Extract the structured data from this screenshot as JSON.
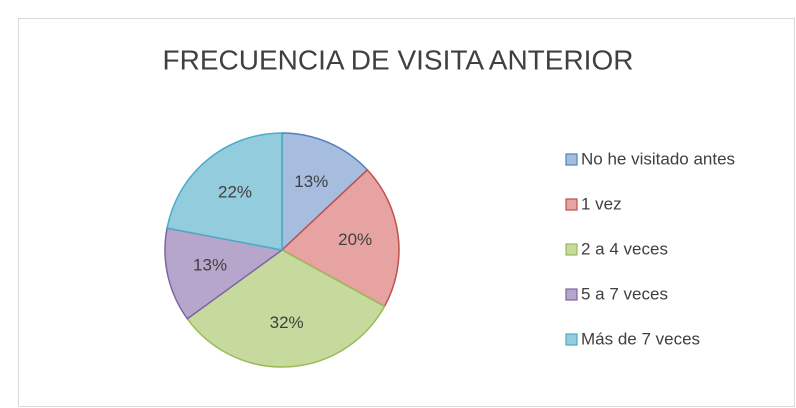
{
  "chart_data": {
    "type": "pie",
    "title": "FRECUENCIA DE VISITA ANTERIOR",
    "categories": [
      "No he visitado antes",
      "1 vez",
      "2 a 4 veces",
      "5 a 7 veces",
      "Más de 7 veces"
    ],
    "values": [
      13,
      20,
      32,
      13,
      22
    ],
    "value_labels": [
      "13%",
      "20%",
      "32%",
      "13%",
      "22%"
    ],
    "colors": [
      "#a7bde0",
      "#e6a3a2",
      "#c5da9c",
      "#b7a6cc",
      "#93cddd"
    ],
    "edge_colors": [
      "#4f81bd",
      "#c0504d",
      "#9bbb59",
      "#8064a2",
      "#4bacc6"
    ],
    "legend": "right"
  }
}
